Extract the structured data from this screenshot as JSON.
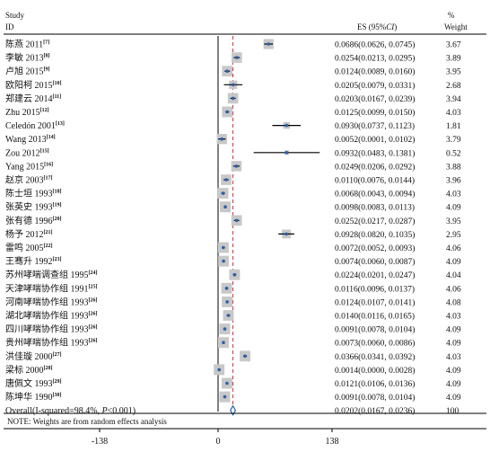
{
  "chart_data": {
    "type": "forest",
    "header": {
      "left_line1": "Study",
      "left_line2": "ID",
      "es_label": "ES (95%",
      "es_label_ci": "CI",
      "es_label_end": ")",
      "weight_line1": "%",
      "weight_line2": "Weight"
    },
    "x_axis": {
      "ticks": [
        "-138",
        "0",
        "138"
      ],
      "tick_values": [
        -138,
        0,
        138
      ]
    },
    "studies": [
      {
        "name": "陈燕 2011",
        "ref": "[7]",
        "es": 0.0686,
        "ci": [
          0.0626,
          0.0745
        ],
        "es_text": "0.0686(0.0626, 0.0745)",
        "weight": "3.67"
      },
      {
        "name": "李敏 2013",
        "ref": "[8]",
        "es": 0.0254,
        "ci": [
          0.0213,
          0.0295
        ],
        "es_text": "0.0254(0.0213, 0.0295)",
        "weight": "3.89"
      },
      {
        "name": "卢旭 2015",
        "ref": "[9]",
        "es": 0.0124,
        "ci": [
          0.0089,
          0.016
        ],
        "es_text": "0.0124(0.0089, 0.0160)",
        "weight": "3.95"
      },
      {
        "name": "欧阳柯 2015",
        "ref": "[10]",
        "es": 0.0205,
        "ci": [
          0.0079,
          0.0331
        ],
        "es_text": "0.0205(0.0079, 0.0331)",
        "weight": "2.68"
      },
      {
        "name": "郑建云 2014",
        "ref": "[11]",
        "es": 0.0203,
        "ci": [
          0.0167,
          0.0239
        ],
        "es_text": "0.0203(0.0167, 0.0239)",
        "weight": "3.94"
      },
      {
        "name": "Zhu 2015",
        "ref": "[12]",
        "es": 0.0125,
        "ci": [
          0.0099,
          0.015
        ],
        "es_text": "0.0125(0.0099, 0.0150)",
        "weight": "4.03"
      },
      {
        "name": "Celedón 2001",
        "ref": "[13]",
        "es": 0.093,
        "ci": [
          0.0737,
          0.1123
        ],
        "es_text": "0.0930(0.0737, 0.1123)",
        "weight": "1.81"
      },
      {
        "name": "Wang 2013",
        "ref": "[14]",
        "es": 0.0052,
        "ci": [
          0.0001,
          0.0102
        ],
        "es_text": "0.0052(0.0001, 0.0102)",
        "weight": "3.79"
      },
      {
        "name": "Zou 2012",
        "ref": "[15]",
        "es": 0.0932,
        "ci": [
          0.0483,
          0.1381
        ],
        "es_text": "0.0932(0.0483, 0.1381)",
        "weight": "0.52"
      },
      {
        "name": "Yang 2015",
        "ref": "[16]",
        "es": 0.0249,
        "ci": [
          0.0206,
          0.0292
        ],
        "es_text": "0.0249(0.0206, 0.0292)",
        "weight": "3.88"
      },
      {
        "name": "赵京 2003",
        "ref": "[17]",
        "es": 0.011,
        "ci": [
          0.0076,
          0.0144
        ],
        "es_text": "0.0110(0.0076, 0.0144)",
        "weight": "3.96"
      },
      {
        "name": "陈士垣 1993",
        "ref": "[18]",
        "es": 0.0068,
        "ci": [
          0.0043,
          0.0094
        ],
        "es_text": "0.0068(0.0043, 0.0094)",
        "weight": "4.03"
      },
      {
        "name": "张英史 1993",
        "ref": "[19]",
        "es": 0.0098,
        "ci": [
          0.0083,
          0.0113
        ],
        "es_text": "0.0098(0.0083, 0.0113)",
        "weight": "4.09"
      },
      {
        "name": "张有德 1996",
        "ref": "[20]",
        "es": 0.0252,
        "ci": [
          0.0217,
          0.0287
        ],
        "es_text": "0.0252(0.0217, 0.0287)",
        "weight": "3.95"
      },
      {
        "name": "杨予 2012",
        "ref": "[21]",
        "es": 0.0928,
        "ci": [
          0.082,
          0.1035
        ],
        "es_text": "0.0928(0.0820, 0.1035)",
        "weight": "2.95"
      },
      {
        "name": "雷鸣 2005",
        "ref": "[22]",
        "es": 0.0072,
        "ci": [
          0.0052,
          0.0093
        ],
        "es_text": "0.0072(0.0052, 0.0093)",
        "weight": "4.06"
      },
      {
        "name": "王骞升 1992",
        "ref": "[23]",
        "es": 0.0074,
        "ci": [
          0.006,
          0.0087
        ],
        "es_text": "0.0074(0.0060, 0.0087)",
        "weight": "4.09"
      },
      {
        "name": "苏州哮喘调查组 1995",
        "ref": "[24]",
        "es": 0.0224,
        "ci": [
          0.0201,
          0.0247
        ],
        "es_text": "0.0224(0.0201, 0.0247)",
        "weight": "4.04"
      },
      {
        "name": "天津哮喘协作组 1991",
        "ref": "[25]",
        "es": 0.0116,
        "ci": [
          0.0096,
          0.0137
        ],
        "es_text": "0.0116(0.0096, 0.0137)",
        "weight": "4.06"
      },
      {
        "name": "河南哮喘协作组 1993",
        "ref": "[26]",
        "es": 0.0124,
        "ci": [
          0.0107,
          0.0141
        ],
        "es_text": "0.0124(0.0107, 0.0141)",
        "weight": "4.08"
      },
      {
        "name": "湖北哮喘协作组 1993",
        "ref": "[26]",
        "es": 0.014,
        "ci": [
          0.0116,
          0.0165
        ],
        "es_text": "0.0140(0.0116, 0.0165)",
        "weight": "4.03"
      },
      {
        "name": "四川哮喘协作组 1993",
        "ref": "[26]",
        "es": 0.0091,
        "ci": [
          0.0078,
          0.0104
        ],
        "es_text": "0.0091(0.0078, 0.0104)",
        "weight": "4.09"
      },
      {
        "name": "贵州哮喘协作组 1993",
        "ref": "[26]",
        "es": 0.0073,
        "ci": [
          0.006,
          0.0086
        ],
        "es_text": "0.0073(0.0060, 0.0086)",
        "weight": "4.09"
      },
      {
        "name": "洪佳璇 2000",
        "ref": "[27]",
        "es": 0.0366,
        "ci": [
          0.0341,
          0.0392
        ],
        "es_text": "0.0366(0.0341, 0.0392)",
        "weight": "4.03"
      },
      {
        "name": "梁标 2000",
        "ref": "[28]",
        "es": 0.0014,
        "ci": [
          0.0,
          0.0028
        ],
        "es_text": "0.0014(0.0000, 0.0028)",
        "weight": "4.09"
      },
      {
        "name": "唐佩文 1993",
        "ref": "[29]",
        "es": 0.0121,
        "ci": [
          0.0106,
          0.0136
        ],
        "es_text": "0.0121(0.0106, 0.0136)",
        "weight": "4.09"
      },
      {
        "name": "陈坤华 1990",
        "ref": "[30]",
        "es": 0.0091,
        "ci": [
          0.0078,
          0.0104
        ],
        "es_text": "0.0091(0.0078, 0.0104)",
        "weight": "4.09"
      }
    ],
    "overall": {
      "label_prefix": "Overall(I-squared=98.4%, ",
      "label_p": "P",
      "label_suffix": "<0.001)",
      "es": 0.0202,
      "ci": [
        0.0167,
        0.0236
      ],
      "es_text": "0.0202(0.0167, 0.0236)",
      "weight": "100"
    },
    "note": "NOTE: Weights are from random effects analysis",
    "colors": {
      "point": "#2d5fa6",
      "box": "#c8c8c8",
      "ci_line": "#000000",
      "null_line": "#000000",
      "overall_line": "#cc3344",
      "diamond": "#2d5fa6",
      "rule": "#000000"
    }
  }
}
